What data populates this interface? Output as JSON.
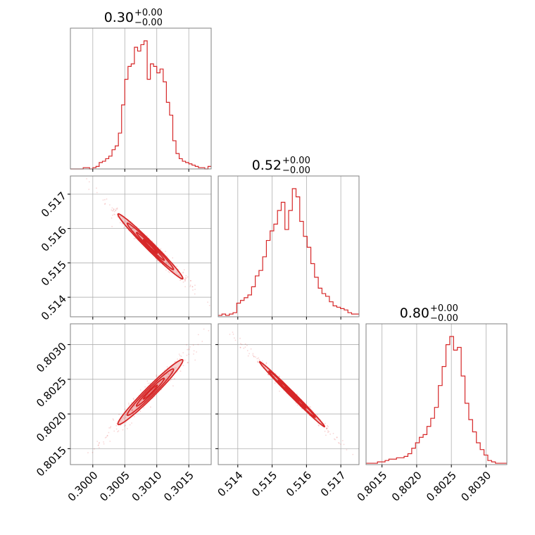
{
  "chart_data": {
    "type": "corner",
    "color": "#d62728",
    "parameters": [
      {
        "title_value": "0.30",
        "title_plus": "+0.00",
        "title_minus": "−0.00",
        "range": [
          0.29965,
          0.30185
        ],
        "ticks": [
          0.3,
          0.3005,
          0.301,
          0.3015
        ],
        "tick_labels": [
          "0.3000",
          "0.3005",
          "0.3010",
          "0.3015"
        ],
        "hist": [
          0,
          0,
          0,
          0,
          1,
          1,
          0,
          1,
          2,
          5,
          6,
          8,
          10,
          15,
          18,
          28,
          50,
          70,
          80,
          82,
          95,
          92,
          97,
          100,
          70,
          82,
          80,
          75,
          78,
          68,
          52,
          42,
          22,
          12,
          8,
          6,
          5,
          4,
          3,
          2,
          1,
          1,
          0,
          2
        ]
      },
      {
        "title_value": "0.52",
        "title_plus": "+0.00",
        "title_minus": "−0.00",
        "range": [
          0.51343,
          0.51753
        ],
        "ticks": [
          0.514,
          0.515,
          0.516,
          0.517
        ],
        "tick_labels": [
          "0.514",
          "0.515",
          "0.516",
          "0.517"
        ],
        "hist": [
          1,
          2,
          1,
          2,
          3,
          10,
          12,
          14,
          16,
          22,
          30,
          34,
          44,
          56,
          63,
          68,
          78,
          84,
          64,
          78,
          94,
          88,
          70,
          59,
          51,
          39,
          29,
          21,
          17,
          15,
          11,
          8,
          7,
          6,
          5,
          3,
          2,
          2
        ]
      },
      {
        "title_value": "0.80",
        "title_plus": "+0.00",
        "title_minus": "−0.00",
        "range": [
          0.80127,
          0.8033
        ],
        "ticks": [
          0.8015,
          0.802,
          0.8025,
          0.803
        ],
        "tick_labels": [
          "0.8015",
          "0.8020",
          "0.8025",
          "0.8030"
        ],
        "hist": [
          1,
          1,
          1,
          2,
          2,
          3,
          4,
          4,
          5,
          5,
          6,
          8,
          12,
          16,
          20,
          22,
          28,
          34,
          42,
          58,
          72,
          88,
          94,
          84,
          86,
          65,
          45,
          33,
          24,
          16,
          11,
          7,
          3,
          2,
          1,
          1,
          1
        ]
      }
    ],
    "y_tick_labels": {
      "p2": [
        "0.514",
        "0.515",
        "0.516",
        "0.517"
      ],
      "p3": [
        "0.8015",
        "0.8020",
        "0.8025",
        "0.8030"
      ]
    }
  }
}
